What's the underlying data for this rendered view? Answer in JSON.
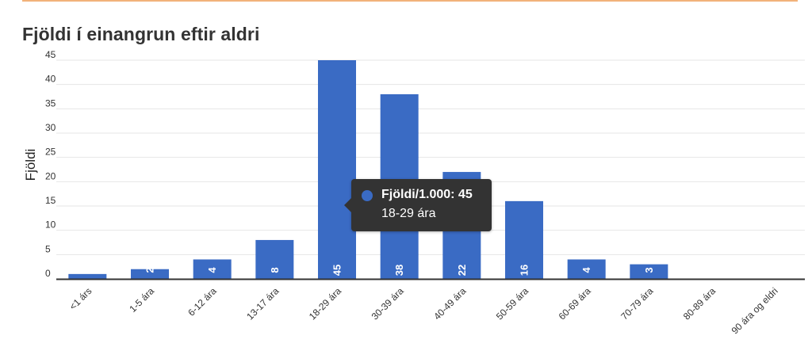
{
  "chart_data": {
    "type": "bar",
    "title": "Fjöldi í einangrun eftir aldri",
    "xlabel": "",
    "ylabel": "Fjöldi",
    "categories": [
      "<1 árs",
      "1-5 ára",
      "6-12 ára",
      "13-17 ára",
      "18-29 ára",
      "30-39 ára",
      "40-49 ára",
      "50-59 ára",
      "60-69 ára",
      "70-79 ára",
      "80-89 ára",
      "90 ára og eldri"
    ],
    "series": [
      {
        "name": "Fjöldi/1.000",
        "values": [
          1,
          2,
          4,
          8,
          45,
          38,
          22,
          16,
          4,
          3,
          0,
          0
        ]
      }
    ],
    "data_labels": [
      "",
      "2",
      "4",
      "8",
      "45",
      "38",
      "22",
      "16",
      "4",
      "3",
      "",
      ""
    ],
    "yticks": [
      0,
      5,
      10,
      15,
      20,
      25,
      30,
      35,
      40,
      45
    ],
    "ylim": [
      0,
      45
    ],
    "grid": true,
    "legend": "none",
    "colors": {
      "bar": "#3a6bc4",
      "grid": "#e6e6e6",
      "axis": "#333333",
      "accent": "#f2b27a"
    }
  },
  "tooltip": {
    "series_text": "Fjöldi/1.000: 45",
    "category_text": "18-29 ára"
  }
}
